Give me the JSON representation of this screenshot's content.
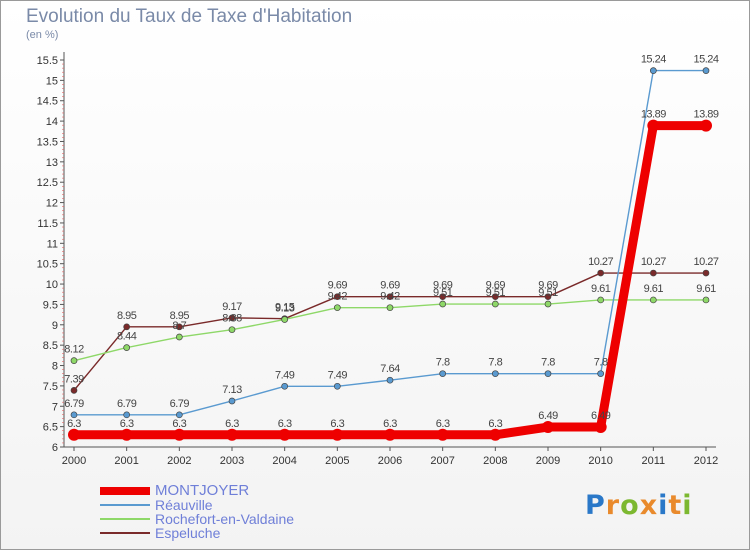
{
  "title": "Evolution du Taux de Taxe d'Habitation",
  "subtitle": "(en %)",
  "logo": {
    "letters": [
      "P",
      "r",
      "o",
      "x",
      "i",
      "t",
      "i"
    ],
    "colors": [
      "#2a78c8",
      "#e98a2c",
      "#7cb830",
      "#e98a2c",
      "#2a78c8",
      "#e98a2c",
      "#7cb830"
    ]
  },
  "chart_data": {
    "type": "line",
    "title": "Evolution du Taux de Taxe d'Habitation",
    "ylabel": "(en %)",
    "xlabel": "",
    "x": [
      "2000",
      "2001",
      "2002",
      "2003",
      "2004",
      "2005",
      "2006",
      "2007",
      "2008",
      "2009",
      "2010",
      "2011",
      "2012"
    ],
    "ylim": [
      6,
      15.5
    ],
    "yticks": [
      "6",
      "6.5",
      "7",
      "7.5",
      "8",
      "8.5",
      "9",
      "9.5",
      "10",
      "10.5",
      "11",
      "11.5",
      "12",
      "12.5",
      "13",
      "13.5",
      "14",
      "14.5",
      "15",
      "15.5"
    ],
    "grid": false,
    "legend_position": "bottom-left",
    "series": [
      {
        "name": "MONTJOYER",
        "color": "#ee0000",
        "values": [
          6.3,
          6.3,
          6.3,
          6.3,
          6.3,
          6.3,
          6.3,
          6.3,
          6.3,
          6.49,
          6.49,
          13.89,
          13.89
        ],
        "labels": [
          "6.3",
          "6.3",
          "6.3",
          "6.3",
          "6.3",
          "6.3",
          "6.3",
          "6.3",
          "6.3",
          "6.49",
          "6.49",
          "13.89",
          "13.89"
        ]
      },
      {
        "name": "Réauville",
        "color": "#5a9ad0",
        "values": [
          6.79,
          6.79,
          6.79,
          7.13,
          7.49,
          7.49,
          7.64,
          7.8,
          7.8,
          7.8,
          7.8,
          15.24,
          15.24
        ],
        "labels": [
          "6.79",
          "6.79",
          "6.79",
          "7.13",
          "7.49",
          "7.49",
          "7.64",
          "7.8",
          "7.8",
          "7.8",
          "7.8",
          "15.24",
          "15.24"
        ]
      },
      {
        "name": "Rochefort-en-Valdaine",
        "color": "#8ed868",
        "values": [
          8.12,
          8.44,
          8.7,
          8.88,
          9.13,
          9.42,
          9.42,
          9.51,
          9.51,
          9.51,
          9.61,
          9.61,
          9.61
        ],
        "labels": [
          "8.12",
          "8.44",
          "8.7",
          "8.88",
          "9.13",
          "9.42",
          "9.42",
          "9.51",
          "9.51",
          "9.51",
          "9.61",
          "9.61",
          "9.61"
        ]
      },
      {
        "name": "Espeluche",
        "color": "#7a2a2a",
        "values": [
          7.39,
          8.95,
          8.95,
          9.17,
          9.15,
          9.69,
          9.69,
          9.69,
          9.69,
          9.69,
          10.27,
          10.27,
          10.27
        ],
        "labels": [
          "7.39",
          "8.95",
          "8.95",
          "9.17",
          "9.15",
          "9.69",
          "9.69",
          "9.69",
          "9.69",
          "9.69",
          "10.27",
          "10.27",
          "10.27"
        ]
      }
    ]
  }
}
